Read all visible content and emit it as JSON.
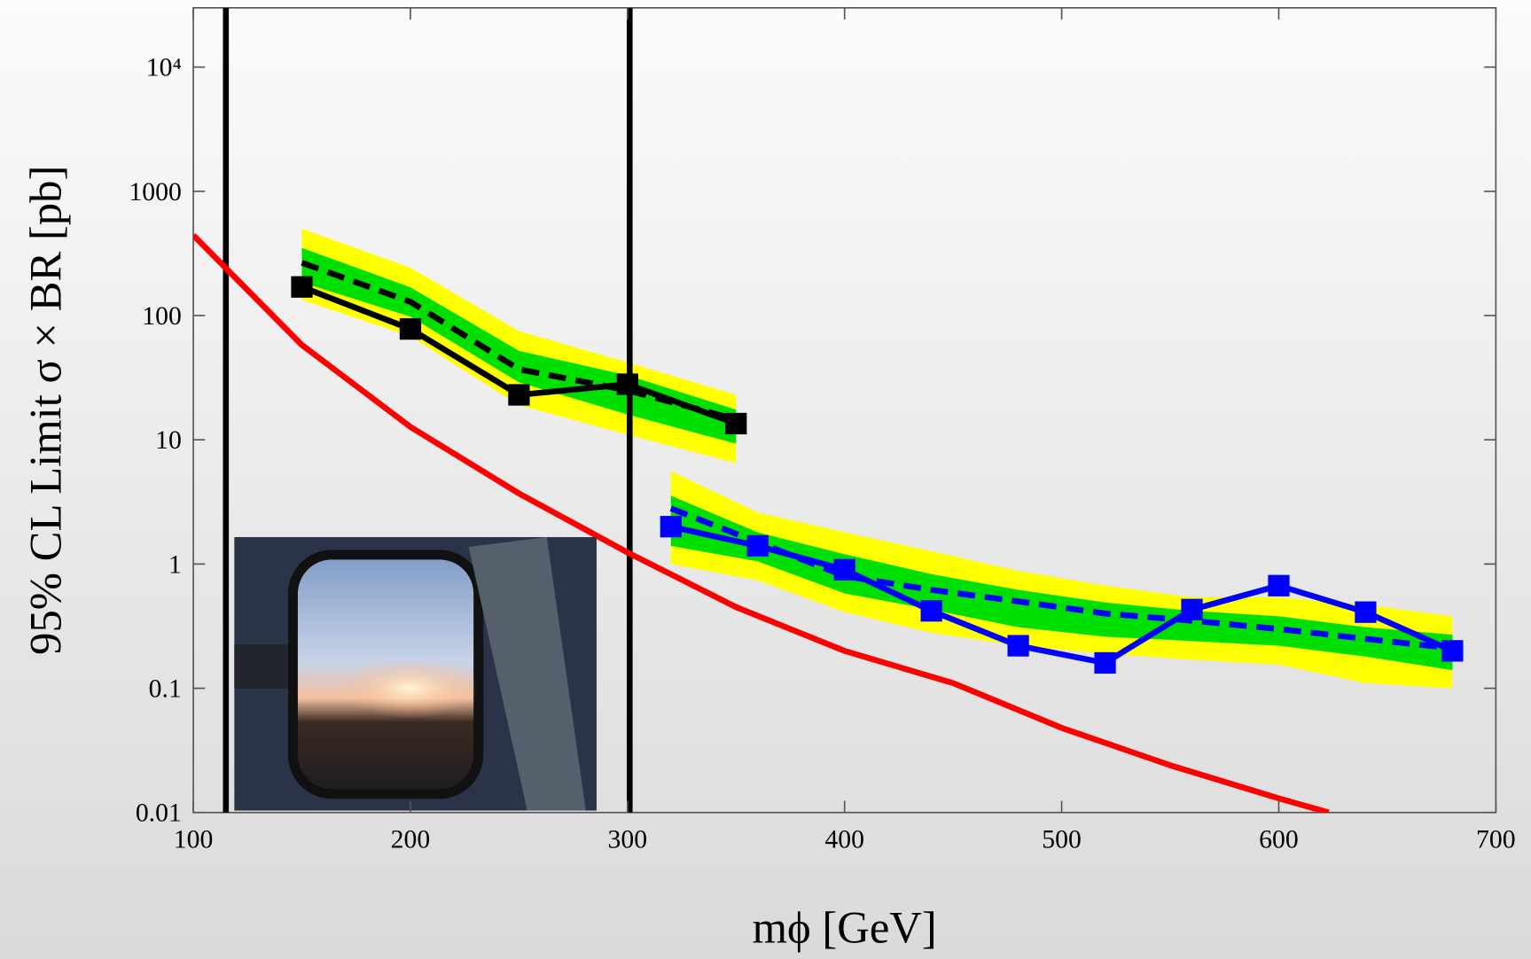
{
  "chart_data": {
    "type": "line",
    "log_y": true,
    "xlabel": "mϕ [GeV]",
    "ylabel": "95% CL Limit σ × BR [pb]",
    "xlim": [
      100,
      700
    ],
    "ylim": [
      0.01,
      30000
    ],
    "xticks": [
      100,
      200,
      300,
      400,
      500,
      600,
      700
    ],
    "yticks": [
      {
        "value": 0.01,
        "label": "0.01"
      },
      {
        "value": 0.1,
        "label": "0.1"
      },
      1,
      10,
      100,
      1000,
      {
        "value": 10000,
        "label": "10⁴"
      }
    ],
    "vlines": {
      "color": "#000000",
      "x": [
        115,
        301
      ]
    },
    "bands": [
      {
        "color": "#ffff00",
        "x": [
          150,
          200,
          250,
          300,
          350
        ],
        "low": [
          134,
          68,
          19,
          11,
          6.5
        ],
        "high": [
          500,
          243,
          75,
          42,
          23
        ]
      },
      {
        "color": "#00e000",
        "x": [
          150,
          200,
          250,
          300,
          350
        ],
        "low": [
          185,
          98,
          29,
          16,
          9.3
        ],
        "high": [
          350,
          169,
          52,
          33,
          17.5
        ]
      },
      {
        "color": "#ffff00",
        "x": [
          320,
          360,
          400,
          440,
          480,
          520,
          560,
          600,
          640,
          680
        ],
        "low": [
          1.0,
          0.74,
          0.41,
          0.28,
          0.22,
          0.19,
          0.17,
          0.155,
          0.11,
          0.1
        ],
        "high": [
          5.6,
          2.6,
          1.8,
          1.27,
          0.88,
          0.67,
          0.54,
          0.54,
          0.47,
          0.38
        ]
      },
      {
        "color": "#00e000",
        "x": [
          320,
          360,
          400,
          440,
          480,
          520,
          560,
          600,
          640,
          680
        ],
        "low": [
          1.4,
          1.05,
          0.58,
          0.43,
          0.31,
          0.26,
          0.24,
          0.22,
          0.18,
          0.14
        ],
        "high": [
          3.55,
          1.8,
          1.2,
          0.83,
          0.62,
          0.49,
          0.42,
          0.38,
          0.31,
          0.27
        ]
      }
    ],
    "lines": [
      {
        "color": "#ff0000",
        "dashed": false,
        "markers": false,
        "x": [
          100,
          150,
          200,
          250,
          300,
          350,
          400,
          450,
          500,
          550,
          600,
          623
        ],
        "values": [
          443,
          58,
          12.7,
          3.7,
          1.24,
          0.45,
          0.2,
          0.11,
          0.048,
          0.024,
          0.013,
          0.01
        ]
      },
      {
        "color": "#000000",
        "dashed": true,
        "markers": false,
        "x": [
          150,
          200,
          250,
          300,
          350
        ],
        "values": [
          266,
          129,
          37,
          25,
          14.6
        ]
      },
      {
        "color": "#000000",
        "dashed": false,
        "markers": true,
        "x": [
          150,
          200,
          250,
          300,
          350
        ],
        "values": [
          170,
          78,
          23,
          28,
          13.5
        ]
      },
      {
        "color": "#0000ff",
        "dashed": true,
        "markers": false,
        "x": [
          320,
          360,
          400,
          440,
          480,
          520,
          560,
          600,
          640,
          680
        ],
        "values": [
          2.8,
          1.5,
          0.8,
          0.62,
          0.5,
          0.4,
          0.35,
          0.3,
          0.25,
          0.21
        ]
      },
      {
        "color": "#0000ff",
        "dashed": false,
        "markers": true,
        "x": [
          320,
          360,
          400,
          440,
          480,
          520,
          560,
          600,
          640,
          680
        ],
        "values": [
          2.0,
          1.4,
          0.9,
          0.42,
          0.22,
          0.16,
          0.43,
          0.67,
          0.41,
          0.2
        ]
      }
    ]
  }
}
